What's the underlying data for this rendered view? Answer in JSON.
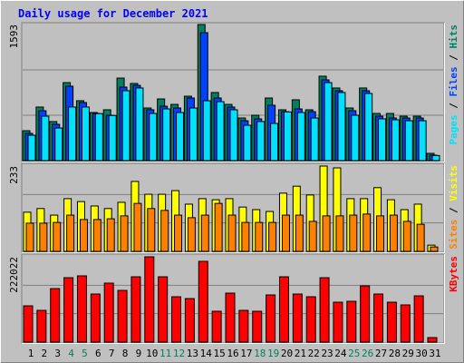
{
  "chart_data": [
    {
      "type": "bar",
      "title": "Daily usage for December 2021",
      "legend_separator": "/",
      "ylim": [
        0,
        1593
      ],
      "yticks": [
        1593
      ],
      "series": [
        {
          "name": "Hits",
          "color": "#008060",
          "values": [
            350,
            627,
            457,
            913,
            701,
            563,
            595,
            966,
            903,
            616,
            722,
            658,
            754,
            1593,
            797,
            658,
            499,
            531,
            733,
            595,
            712,
            595,
            988,
            850,
            616,
            850,
            552,
            552,
            520,
            520,
            85
          ]
        },
        {
          "name": "Files",
          "color": "#0040ff",
          "values": [
            319,
            584,
            425,
            871,
            680,
            552,
            531,
            860,
            881,
            595,
            637,
            616,
            733,
            1497,
            733,
            627,
            467,
            489,
            648,
            573,
            605,
            573,
            945,
            818,
            584,
            818,
            520,
            499,
            499,
            499,
            64
          ]
        },
        {
          "name": "Pages",
          "color": "#00e0ff",
          "values": [
            297,
            520,
            382,
            627,
            627,
            550,
            528,
            818,
            850,
            552,
            605,
            563,
            616,
            701,
            690,
            595,
            414,
            457,
            435,
            570,
            563,
            499,
            913,
            797,
            531,
            786,
            489,
            478,
            467,
            467,
            60
          ]
        }
      ]
    },
    {
      "type": "bar",
      "legend_separator": "/",
      "ylim": [
        0,
        233
      ],
      "yticks": [
        233
      ],
      "series": [
        {
          "name": "Visits",
          "color": "#ffff00",
          "values": [
            107,
            117,
            99,
            144,
            136,
            124,
            117,
            134,
            191,
            156,
            156,
            166,
            129,
            144,
            141,
            144,
            121,
            114,
            109,
            159,
            178,
            154,
            233,
            228,
            144,
            144,
            174,
            141,
            114,
            129,
            17
          ]
        },
        {
          "name": "Sites",
          "color": "#ff8000",
          "values": [
            77,
            77,
            79,
            99,
            87,
            87,
            89,
            97,
            131,
            117,
            112,
            99,
            92,
            99,
            131,
            99,
            79,
            79,
            79,
            99,
            99,
            82,
            97,
            97,
            99,
            102,
            97,
            99,
            82,
            74,
            12
          ]
        }
      ]
    },
    {
      "type": "bar",
      "categories": [
        "1",
        "2",
        "3",
        "4",
        "5",
        "6",
        "7",
        "8",
        "9",
        "10",
        "11",
        "12",
        "13",
        "14",
        "15",
        "16",
        "17",
        "18",
        "19",
        "20",
        "21",
        "22",
        "23",
        "24",
        "25",
        "26",
        "27",
        "28",
        "29",
        "30",
        "31"
      ],
      "category_colors": [
        "#000000",
        "#000000",
        "#000000",
        "#00805c",
        "#00805c",
        "#000000",
        "#000000",
        "#000000",
        "#000000",
        "#000000",
        "#00805c",
        "#00805c",
        "#000000",
        "#000000",
        "#000000",
        "#000000",
        "#000000",
        "#00805c",
        "#00805c",
        "#000000",
        "#000000",
        "#000000",
        "#000000",
        "#000000",
        "#00805c",
        "#00805c",
        "#000000",
        "#000000",
        "#000000",
        "#000000",
        "#000000"
      ],
      "ylim": [
        0,
        222022
      ],
      "yticks": [
        222022
      ],
      "series": [
        {
          "name": "KBytes",
          "color": "#ff0000",
          "values": [
            94480,
            82670,
            139358,
            167702,
            172426,
            125186,
            153530,
            134634,
            170064,
            222022,
            170064,
            118100,
            113376,
            210218,
            80308,
            127548,
            82670,
            80308,
            122824,
            170064,
            125186,
            118100,
            167702,
            103928,
            106290,
            146444,
            125186,
            103928,
            96842,
            120462,
            11810
          ]
        }
      ]
    }
  ]
}
